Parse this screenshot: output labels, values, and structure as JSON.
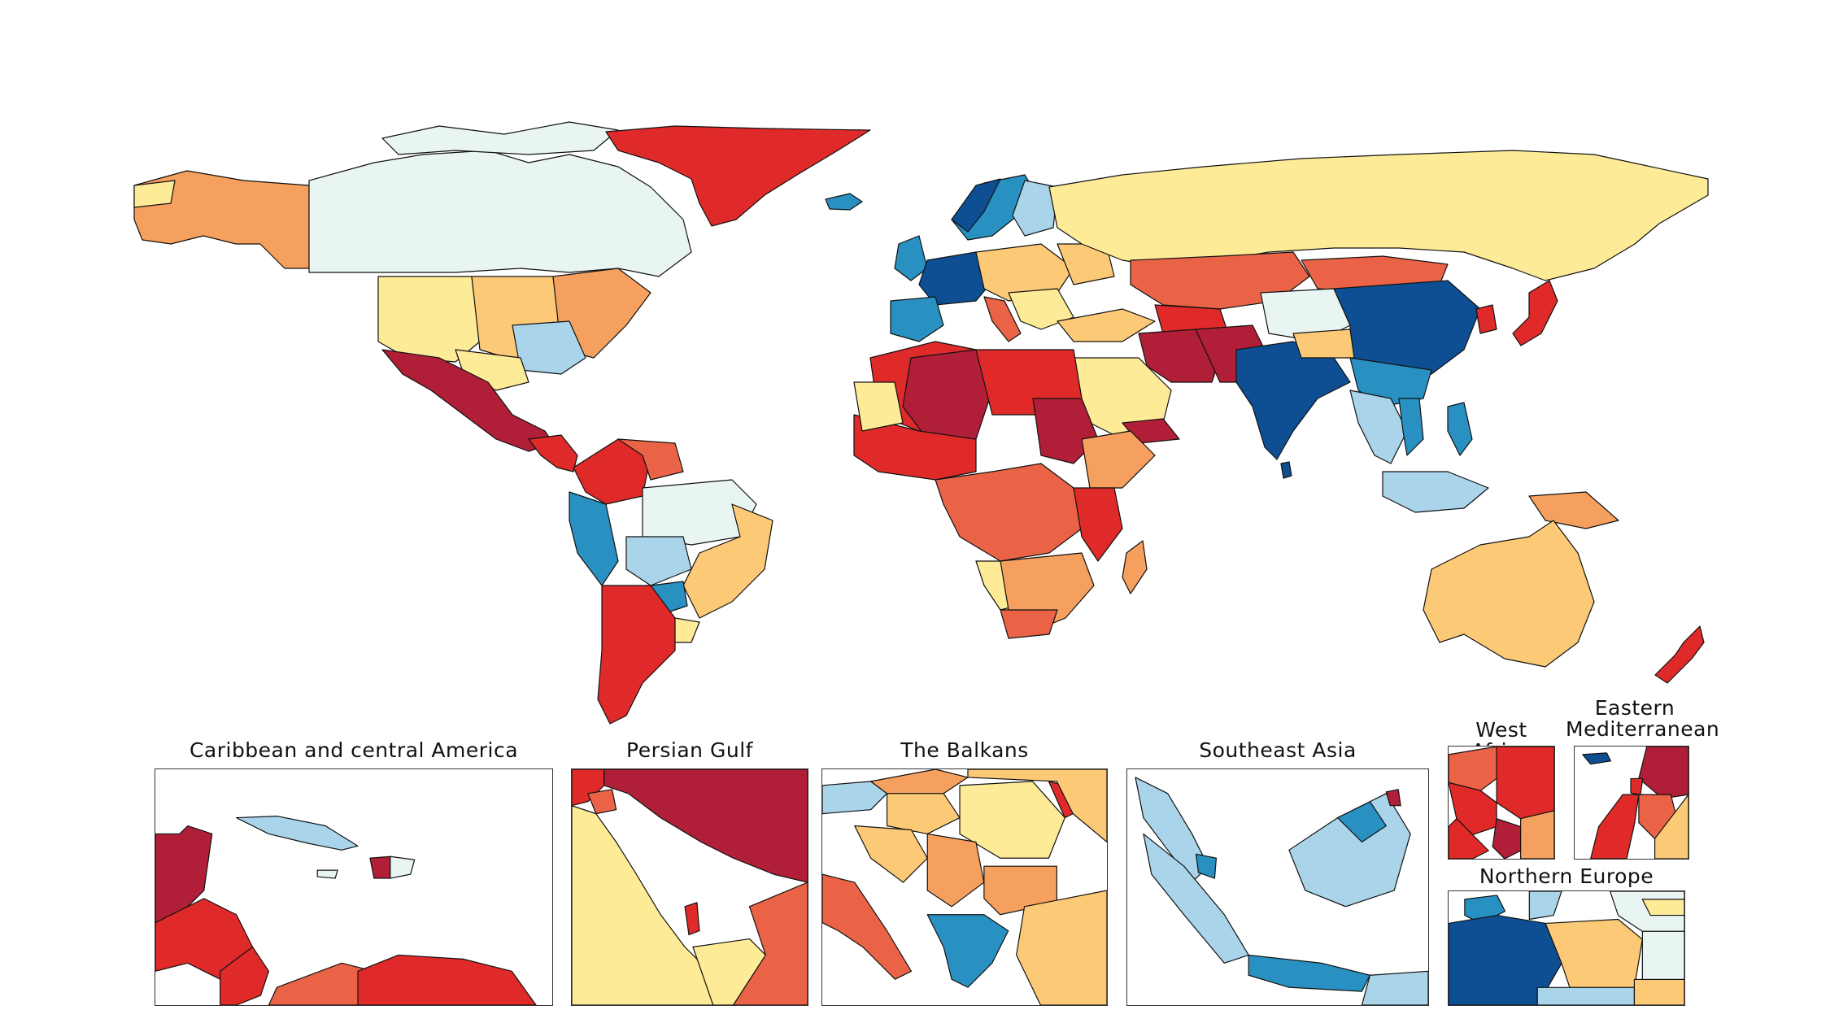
{
  "palette": {
    "dark_red": "#b01f37",
    "red": "#e02a2a",
    "red_orange": "#ea6346",
    "orange": "#f5a05e",
    "light_orange": "#fcca76",
    "pale_yellow": "#fdeb98",
    "pale_cyan": "#e9f5f3",
    "light_blue": "#a9d4ea",
    "mid_blue": "#2990c2",
    "dark_blue": "#0e4f93"
  },
  "insets": [
    {
      "id": "caribbean",
      "title": "Caribbean and central America"
    },
    {
      "id": "persian-gulf",
      "title": "Persian Gulf"
    },
    {
      "id": "balkans",
      "title": "The Balkans"
    },
    {
      "id": "southeast-asia",
      "title": "Southeast Asia"
    },
    {
      "id": "west-africa",
      "title": "West Africa"
    },
    {
      "id": "eastern-med",
      "title_line1": "Eastern",
      "title_line2": "Mediterranean"
    },
    {
      "id": "northern-europe",
      "title": "Northern Europe"
    }
  ]
}
